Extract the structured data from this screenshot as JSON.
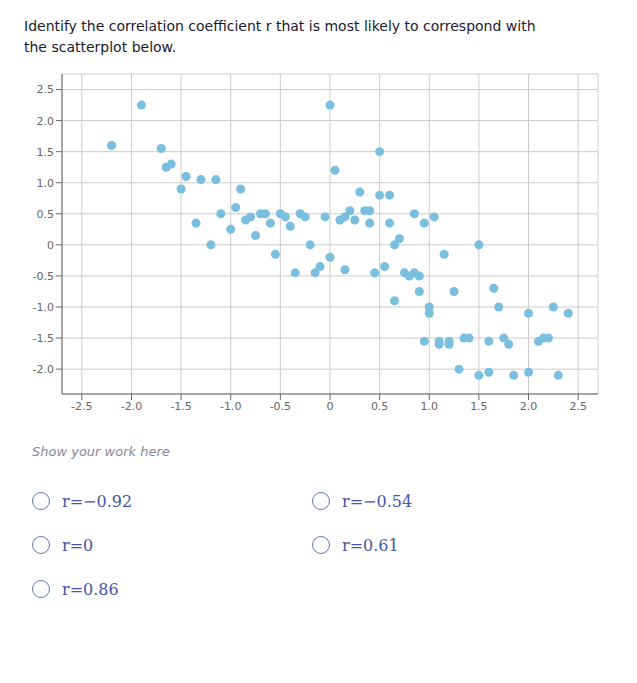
{
  "chart_data": {
    "type": "scatter",
    "title": "Identify the correlation coefficient r that is most likely to correspond with\nthe scatterplot below.",
    "annotations": [
      "Show your work here",
      "r=−0.92",
      "r=0",
      "r=0.86",
      "r=−0.54",
      "r=0.61"
    ],
    "color": "#7bbfdf",
    "grid": true,
    "xlim": [
      -2.7,
      2.7
    ],
    "ylim": [
      -2.4,
      2.75
    ],
    "xticks": [
      -2.5,
      {
        "value": -2.0,
        "label": "-2.0"
      },
      -1.5,
      {
        "value": -1.0,
        "label": "-1.0"
      },
      -0.5,
      0,
      0.5,
      {
        "value": 1.0,
        "label": "1.0"
      },
      1.5,
      {
        "value": 2.0,
        "label": "2.0"
      },
      2.5
    ],
    "yticks": [
      {
        "value": -2.0,
        "label": "-2.0"
      },
      -1.5,
      {
        "value": -1.0,
        "label": "-1.0"
      },
      -0.5,
      0,
      0.5,
      {
        "value": 1.0,
        "label": "1.0"
      },
      1.5,
      {
        "value": 2.0,
        "label": "2.0"
      },
      2.5
    ],
    "x": [
      -2.2,
      -1.9,
      -1.7,
      -1.65,
      -1.6,
      -1.5,
      -1.45,
      -1.35,
      -1.3,
      -1.2,
      -1.15,
      -1.1,
      -1.0,
      -0.95,
      -0.9,
      -0.85,
      -0.8,
      -0.75,
      -0.7,
      -0.65,
      -0.6,
      -0.55,
      -0.5,
      -0.45,
      -0.4,
      -0.35,
      -0.3,
      -0.25,
      -0.2,
      -0.15,
      -0.1,
      -0.05,
      0.0,
      0.0,
      0.05,
      0.1,
      0.15,
      0.15,
      0.2,
      0.25,
      0.3,
      0.35,
      0.4,
      0.4,
      0.45,
      0.5,
      0.5,
      0.55,
      0.6,
      0.6,
      0.65,
      0.65,
      0.7,
      0.75,
      0.8,
      0.85,
      0.85,
      0.9,
      0.9,
      0.95,
      0.95,
      1.0,
      1.0,
      1.05,
      1.1,
      1.1,
      1.15,
      1.2,
      1.2,
      1.25,
      1.3,
      1.35,
      1.4,
      1.5,
      1.5,
      1.6,
      1.6,
      1.65,
      1.7,
      1.75,
      1.8,
      1.85,
      2.0,
      2.0,
      2.1,
      2.15,
      2.2,
      2.25,
      2.3,
      2.4
    ],
    "values": [
      1.6,
      2.25,
      1.55,
      1.25,
      1.3,
      0.9,
      1.1,
      0.35,
      1.05,
      0.0,
      1.05,
      0.5,
      0.25,
      0.6,
      0.9,
      0.4,
      0.45,
      0.15,
      0.5,
      0.5,
      0.35,
      -0.15,
      0.5,
      0.45,
      0.3,
      -0.45,
      0.5,
      0.45,
      0.0,
      -0.45,
      -0.35,
      0.45,
      -0.2,
      2.25,
      1.2,
      0.4,
      -0.4,
      0.45,
      0.55,
      0.4,
      0.85,
      0.55,
      0.55,
      0.35,
      -0.45,
      1.5,
      0.8,
      -0.35,
      0.8,
      0.35,
      -0.9,
      0.0,
      0.1,
      -0.45,
      -0.5,
      -0.45,
      0.5,
      -0.5,
      -0.75,
      -1.55,
      0.35,
      -1.0,
      -1.1,
      0.45,
      -1.55,
      -1.6,
      -0.15,
      -1.55,
      -1.6,
      -0.75,
      -2.0,
      -1.5,
      -1.5,
      0.0,
      -2.1,
      -1.55,
      -2.05,
      -0.7,
      -1.0,
      -1.5,
      -1.6,
      -2.1,
      -1.1,
      -2.05,
      -1.55,
      -1.5,
      -1.5,
      -1.0,
      -2.1,
      -1.1
    ]
  }
}
